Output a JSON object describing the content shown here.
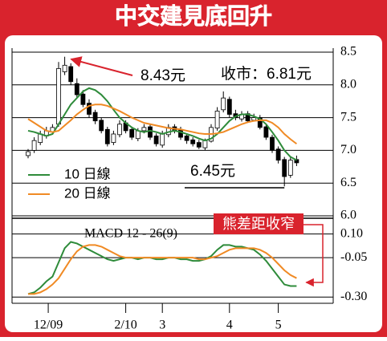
{
  "chart_data": [
    {
      "type": "candlestick",
      "title": "中交建見底回升",
      "open": [
        6.92,
        7.0,
        7.12,
        7.22,
        7.28,
        7.4,
        8.2,
        8.28,
        8.02,
        7.86,
        7.72,
        7.58,
        7.46,
        7.32,
        7.12,
        7.24,
        7.42,
        7.32,
        7.18,
        7.3,
        7.36,
        7.22,
        7.08,
        7.24,
        7.36,
        7.32,
        7.22,
        7.16,
        7.12,
        7.04,
        7.14,
        7.34,
        7.62,
        7.78,
        7.56,
        7.48,
        7.56,
        7.46,
        7.5,
        7.36,
        7.2,
        7.02,
        6.86,
        6.62,
        6.86
      ],
      "high": [
        7.02,
        7.2,
        7.3,
        7.36,
        7.4,
        8.35,
        8.43,
        8.33,
        8.1,
        7.92,
        7.78,
        7.62,
        7.5,
        7.36,
        7.3,
        7.46,
        7.46,
        7.36,
        7.34,
        7.4,
        7.4,
        7.26,
        7.3,
        7.4,
        7.4,
        7.36,
        7.26,
        7.2,
        7.16,
        7.18,
        7.4,
        7.66,
        7.9,
        7.82,
        7.62,
        7.6,
        7.6,
        7.56,
        7.54,
        7.4,
        7.24,
        7.06,
        6.9,
        6.9,
        6.92
      ],
      "low": [
        6.88,
        6.96,
        7.08,
        7.18,
        7.24,
        7.36,
        8.15,
        8.0,
        7.8,
        7.66,
        7.5,
        7.4,
        7.26,
        7.06,
        7.08,
        7.2,
        7.26,
        7.16,
        7.14,
        7.26,
        7.16,
        7.06,
        7.04,
        7.2,
        7.26,
        7.16,
        7.1,
        7.06,
        7.02,
        7.0,
        7.12,
        7.3,
        7.58,
        7.5,
        7.46,
        7.44,
        7.42,
        7.44,
        7.32,
        7.16,
        6.96,
        6.8,
        6.45,
        6.58,
        6.76
      ],
      "close": [
        6.98,
        7.15,
        7.25,
        7.3,
        7.35,
        8.25,
        8.3,
        8.05,
        7.85,
        7.7,
        7.55,
        7.45,
        7.3,
        7.1,
        7.25,
        7.4,
        7.3,
        7.2,
        7.3,
        7.35,
        7.2,
        7.1,
        7.25,
        7.35,
        7.3,
        7.2,
        7.15,
        7.1,
        7.05,
        7.15,
        7.35,
        7.6,
        7.8,
        7.55,
        7.5,
        7.55,
        7.45,
        7.5,
        7.35,
        7.2,
        7.0,
        6.85,
        6.6,
        6.85,
        6.81
      ],
      "series": [
        {
          "name": "10 日線",
          "color": "#2e8b3a",
          "values": [
            7.3,
            7.28,
            7.25,
            7.22,
            7.25,
            7.4,
            7.55,
            7.7,
            7.8,
            7.9,
            7.95,
            7.92,
            7.85,
            7.75,
            7.62,
            7.5,
            7.42,
            7.35,
            7.3,
            7.28,
            7.3,
            7.28,
            7.25,
            7.28,
            7.3,
            7.28,
            7.25,
            7.22,
            7.18,
            7.15,
            7.18,
            7.25,
            7.35,
            7.45,
            7.52,
            7.55,
            7.55,
            7.52,
            7.48,
            7.4,
            7.28,
            7.15,
            7.0,
            6.9,
            6.85
          ]
        },
        {
          "name": "20 日線",
          "color": "#f08a24",
          "values": [
            7.48,
            7.42,
            7.36,
            7.3,
            7.28,
            7.3,
            7.38,
            7.46,
            7.55,
            7.62,
            7.68,
            7.7,
            7.7,
            7.68,
            7.64,
            7.6,
            7.55,
            7.5,
            7.46,
            7.42,
            7.4,
            7.38,
            7.36,
            7.34,
            7.33,
            7.32,
            7.3,
            7.28,
            7.26,
            7.25,
            7.25,
            7.26,
            7.28,
            7.32,
            7.36,
            7.4,
            7.43,
            7.45,
            7.46,
            7.46,
            7.42,
            7.35,
            7.25,
            7.17,
            7.1
          ]
        }
      ],
      "ylim": [
        6.0,
        8.5
      ],
      "yticks": [
        {
          "value": 6.0,
          "label": "6.0"
        },
        6.5,
        {
          "value": 7.0,
          "label": "7.0"
        },
        7.5,
        {
          "value": 8.0,
          "label": "8.0"
        },
        8.5
      ],
      "annotations": [
        "8.43元",
        "收市：6.81元",
        "6.45元"
      ],
      "grid": true
    },
    {
      "type": "line",
      "title": "MACD 12 - 26(9)",
      "series": [
        {
          "color": "#2e8b3a",
          "values": [
            -0.28,
            -0.27,
            -0.24,
            -0.2,
            -0.17,
            -0.08,
            0.01,
            0.05,
            0.04,
            0.02,
            0.0,
            -0.02,
            -0.04,
            -0.06,
            -0.07,
            -0.06,
            -0.05,
            -0.05,
            -0.06,
            -0.05,
            -0.05,
            -0.06,
            -0.06,
            -0.05,
            -0.05,
            -0.06,
            -0.06,
            -0.07,
            -0.07,
            -0.06,
            -0.04,
            0.0,
            0.03,
            0.03,
            0.02,
            0.02,
            0.01,
            0.0,
            -0.03,
            -0.07,
            -0.12,
            -0.17,
            -0.22,
            -0.23,
            -0.23
          ]
        },
        {
          "color": "#f08a24",
          "values": [
            -0.28,
            -0.28,
            -0.27,
            -0.25,
            -0.22,
            -0.18,
            -0.12,
            -0.06,
            -0.01,
            0.02,
            0.03,
            0.03,
            0.02,
            0.0,
            -0.02,
            -0.04,
            -0.05,
            -0.05,
            -0.05,
            -0.05,
            -0.05,
            -0.05,
            -0.05,
            -0.05,
            -0.05,
            -0.05,
            -0.05,
            -0.05,
            -0.06,
            -0.06,
            -0.05,
            -0.04,
            -0.02,
            0.0,
            0.01,
            0.01,
            0.01,
            0.01,
            0.0,
            -0.02,
            -0.05,
            -0.09,
            -0.13,
            -0.16,
            -0.18
          ]
        }
      ],
      "ylim": [
        -0.38,
        0.2
      ],
      "yticks": [
        {
          "value": 0.1,
          "label": "0.10"
        },
        -0.05,
        {
          "value": -0.3,
          "label": "-0.30"
        }
      ],
      "xticks": [
        {
          "value": 3.3,
          "label": "12/09"
        },
        {
          "value": 16,
          "label": "2/10"
        },
        {
          "value": 22,
          "label": "3"
        },
        {
          "value": 33,
          "label": "4"
        },
        {
          "value": 41,
          "label": "5"
        }
      ],
      "annotations": [
        "熊差距收窄"
      ],
      "grid": true
    }
  ]
}
